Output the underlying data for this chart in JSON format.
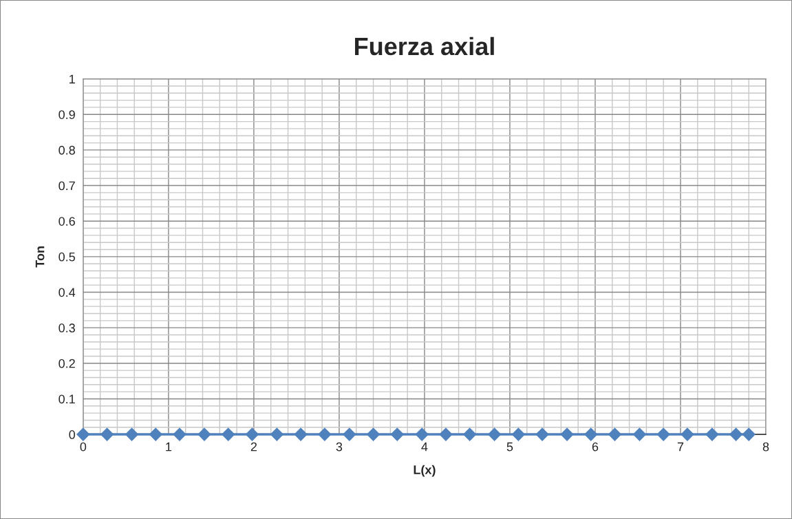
{
  "chart_data": {
    "type": "line",
    "title": "Fuerza axial",
    "xlabel": "L(x)",
    "ylabel": "Ton",
    "series": [
      {
        "color": "#4f81bd",
        "x": [
          0,
          0.28,
          0.57,
          0.85,
          1.13,
          1.42,
          1.7,
          1.98,
          2.27,
          2.55,
          2.83,
          3.12,
          3.4,
          3.68,
          3.97,
          4.25,
          4.53,
          4.82,
          5.1,
          5.38,
          5.67,
          5.95,
          6.23,
          6.52,
          6.8,
          7.08,
          7.37,
          7.65,
          7.8
        ],
        "values": [
          0,
          0,
          0,
          0,
          0,
          0,
          0,
          0,
          0,
          0,
          0,
          0,
          0,
          0,
          0,
          0,
          0,
          0,
          0,
          0,
          0,
          0,
          0,
          0,
          0,
          0,
          0,
          0,
          0
        ]
      }
    ],
    "xlim": [
      0,
      8
    ],
    "xticks": [
      0,
      1,
      2,
      3,
      4,
      5,
      6,
      7,
      8
    ],
    "ylim": [
      0,
      1
    ],
    "yticks": [
      0,
      0.1,
      0.2,
      0.3,
      0.4,
      0.5,
      0.6,
      0.7,
      0.8,
      0.9,
      1
    ],
    "grid": true,
    "marker": "diamond",
    "line_style": "solid",
    "legend": false
  }
}
